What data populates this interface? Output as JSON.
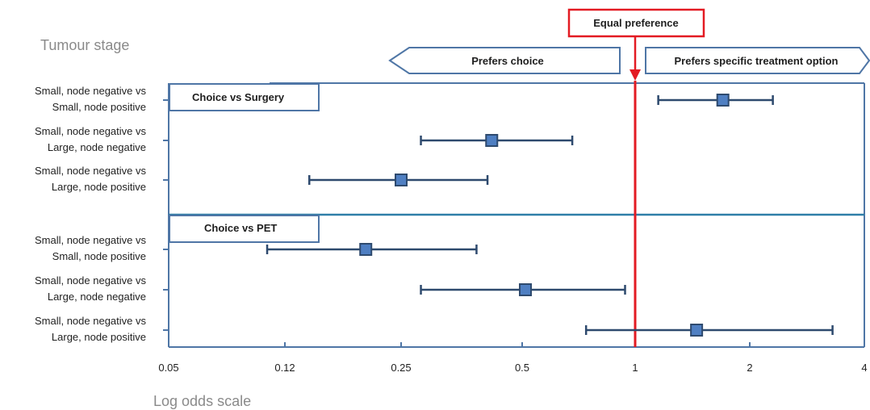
{
  "chart_data": {
    "type": "forest",
    "scale": "log",
    "xlabel": "Log odds scale",
    "ylabel": "Tumour stage",
    "xticks": [
      "0.05",
      "0.12",
      "0.25",
      "0.5",
      "1",
      "2",
      "4"
    ],
    "xlim": [
      0.05,
      4
    ],
    "reference_line": {
      "value": 1,
      "label": "Equal preference"
    },
    "direction_labels": {
      "left": "Prefers choice",
      "right": "Prefers specific treatment option"
    },
    "groups": [
      {
        "name": "Choice vs Surgery",
        "rows": [
          {
            "label": [
              "Small, node negative vs",
              "Small, node positive"
            ],
            "estimate": 1.7,
            "lower": 1.15,
            "upper": 2.3
          },
          {
            "label": [
              "Small, node negative vs",
              "Large, node negative"
            ],
            "estimate": 0.42,
            "lower": 0.28,
            "upper": 0.68
          },
          {
            "label": [
              "Small, node negative vs",
              "Large, node positive"
            ],
            "estimate": 0.25,
            "lower": 0.14,
            "upper": 0.41
          }
        ]
      },
      {
        "name": "Choice vs PET",
        "rows": [
          {
            "label": [
              "Small, node negative vs",
              "Small, node positive"
            ],
            "estimate": 0.2,
            "lower": 0.105,
            "upper": 0.385
          },
          {
            "label": [
              "Small, node negative vs",
              "Large, node negative"
            ],
            "estimate": 0.51,
            "lower": 0.28,
            "upper": 0.94
          },
          {
            "label": [
              "Small, node negative vs",
              "Large, node positive"
            ],
            "estimate": 1.45,
            "lower": 0.74,
            "upper": 3.3
          }
        ]
      }
    ],
    "colors": {
      "axis": "#4f76a6",
      "errorbar": "#2e4a6e",
      "marker_fill": "#4f7fc2",
      "marker_stroke": "#2e4a6e",
      "reference": "#e31b23",
      "divider": "#2f7fa8"
    }
  }
}
